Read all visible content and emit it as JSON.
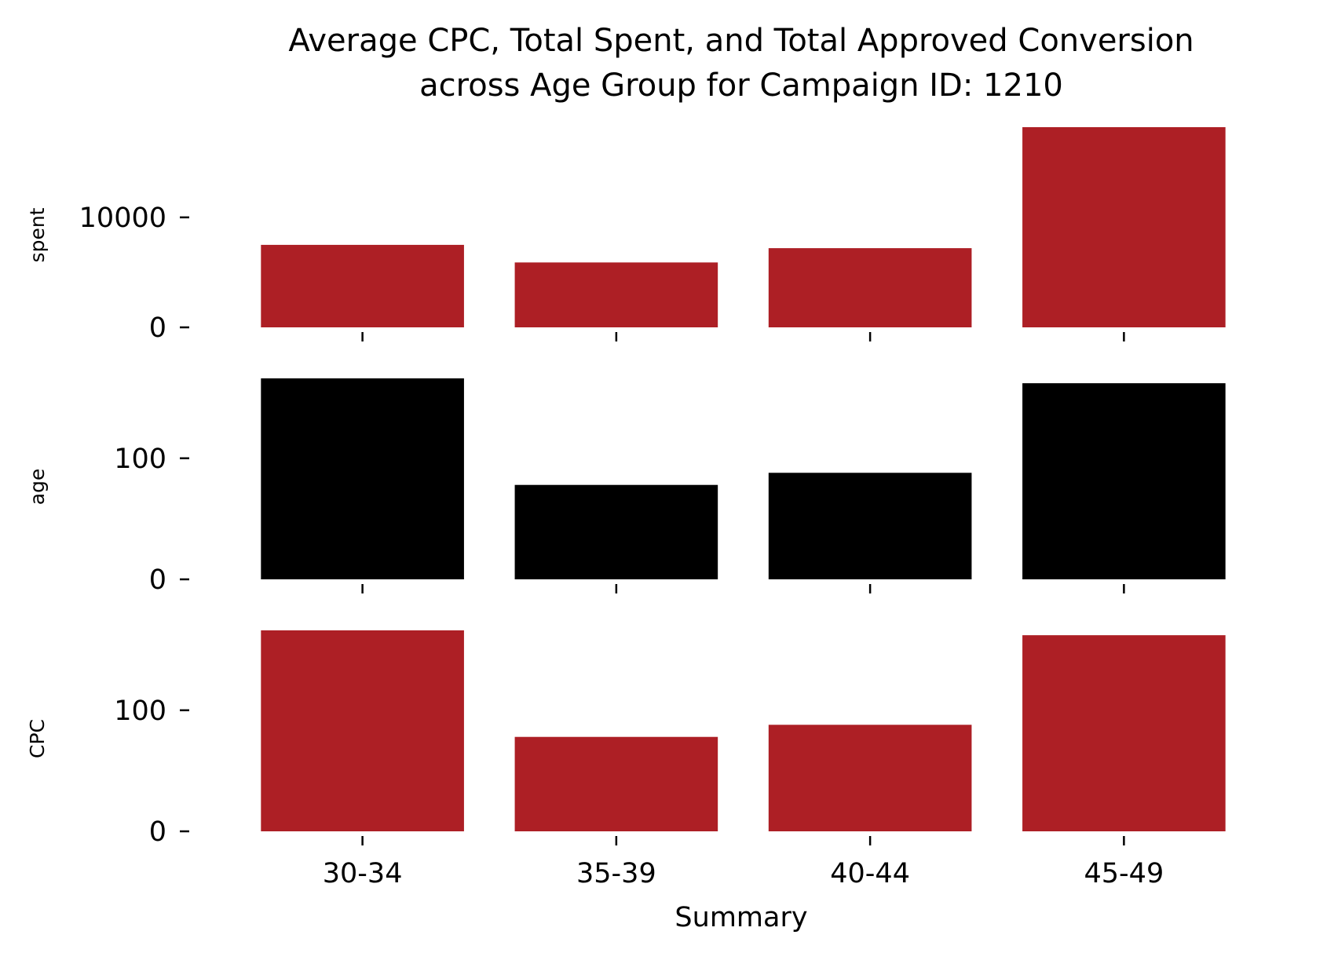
{
  "chart_data": {
    "type": "bar",
    "title_lines": [
      "Average CPC, Total Spent, and Total Approved Conversion",
      "across Age Group for Campaign ID: 1210"
    ],
    "xlabel": "Summary",
    "categories": [
      "30-34",
      "35-39",
      "40-44",
      "45-49"
    ],
    "panels": [
      {
        "ylabel": "spent",
        "color": "#ad1f25",
        "values": [
          7500,
          5900,
          7200,
          18200
        ],
        "ylim": [
          0,
          18200
        ],
        "yticks": [
          0,
          10000
        ],
        "ytick_labels": [
          "0",
          "10000"
        ]
      },
      {
        "ylabel": "age",
        "color": "#000000",
        "values": [
          166,
          78,
          88,
          162
        ],
        "ylim": [
          0,
          166
        ],
        "yticks": [
          0,
          100
        ],
        "ytick_labels": [
          "0",
          "100"
        ]
      },
      {
        "ylabel": "CPC",
        "color": "#ad1f25",
        "values": [
          166,
          78,
          88,
          162
        ],
        "ylim": [
          0,
          166
        ],
        "yticks": [
          0,
          100
        ],
        "ytick_labels": [
          "0",
          "100"
        ]
      }
    ],
    "grid": false,
    "legend": "none"
  }
}
